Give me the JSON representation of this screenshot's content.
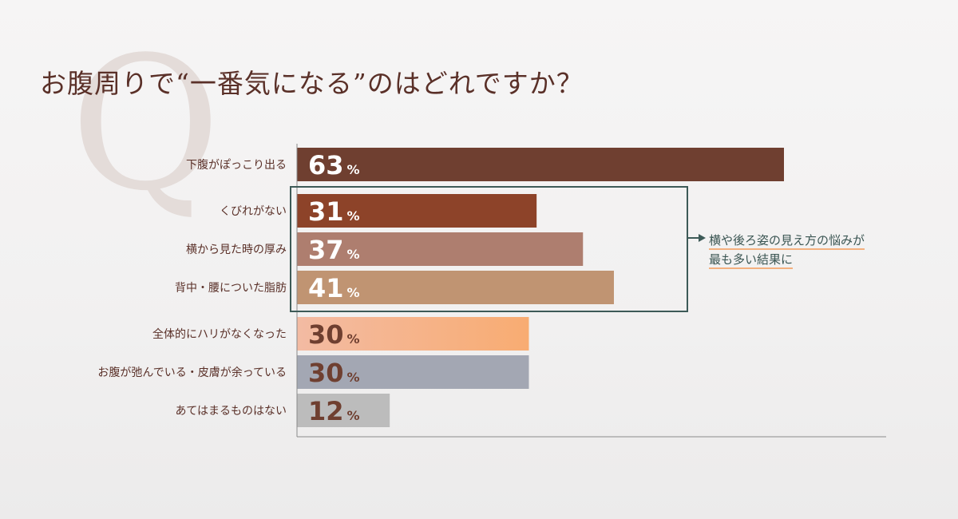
{
  "title": "お腹周りで“一番気になる”のはどれですか？",
  "watermark": "Q",
  "callout": {
    "line1": "横や後ろ姿の見え方の悩みが",
    "line2": "最も多い結果に",
    "highlight_color": "#f3b07e",
    "box_color": "#3d5a57"
  },
  "chart_data": {
    "type": "bar",
    "orientation": "horizontal",
    "unit": "%",
    "categories": [
      "下腹がぽっこり出る",
      "くびれがない",
      "横から見た時の厚み",
      "背中・腰についた脂肪",
      "全体的にハリがなくなった",
      "お腹が弛んでいる・皮膚が余っている",
      "あてはまるものはない"
    ],
    "values": [
      63,
      31,
      37,
      41,
      30,
      30,
      12
    ],
    "colors": [
      "#6f3f30",
      "#8d4329",
      "#ae7e6f",
      "#c09472",
      "gradient:#f3bba3-#f8ac72",
      "#a3a7b3",
      "#bcbcbc"
    ],
    "label_colors": [
      "#ffffff",
      "#ffffff",
      "#ffffff",
      "#ffffff",
      "#6f3f30",
      "#6f3f30",
      "#6f3f30"
    ],
    "highlighted_categories": [
      "くびれがない",
      "横から見た時の厚み",
      "背中・腰についた脂肪"
    ]
  }
}
